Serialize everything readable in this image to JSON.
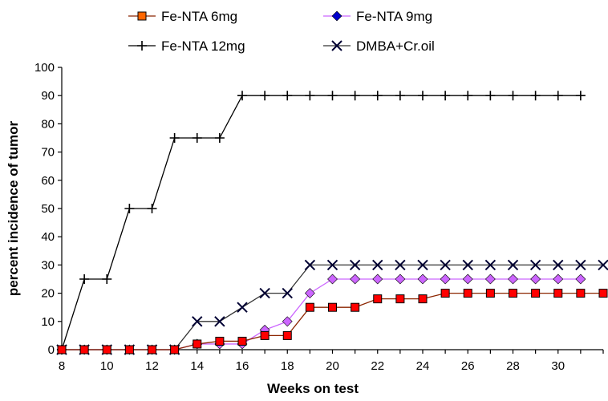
{
  "chart_data": {
    "type": "line",
    "title": "",
    "xlabel": "Weeks on test",
    "ylabel": "percent incidence of tumor",
    "xlim": [
      8,
      32
    ],
    "ylim": [
      0,
      100
    ],
    "x_ticks": [
      8,
      10,
      12,
      14,
      16,
      18,
      20,
      22,
      24,
      26,
      28,
      30
    ],
    "y_ticks": [
      0,
      10,
      20,
      30,
      40,
      50,
      60,
      70,
      80,
      90,
      100
    ],
    "grid": false,
    "legend_position": "top",
    "x": [
      8,
      9,
      10,
      11,
      12,
      13,
      14,
      15,
      16,
      17,
      18,
      19,
      20,
      21,
      22,
      23,
      24,
      25,
      26,
      27,
      28,
      29,
      30,
      31,
      32
    ],
    "series": [
      {
        "name": "Fe-NTA 6mg",
        "color": "#ff0000",
        "line_color": "#8b2500",
        "marker": "square",
        "marker_legend_color": "#ff6600",
        "values": [
          0,
          0,
          0,
          0,
          0,
          0,
          2,
          3,
          3,
          5,
          5,
          15,
          15,
          15,
          18,
          18,
          18,
          20,
          20,
          20,
          20,
          20,
          20,
          20,
          20
        ]
      },
      {
        "name": "Fe-NTA 9mg",
        "color": "#cc66ff",
        "line_color": "#cc66ff",
        "marker": "diamond",
        "marker_legend_color": "#0000cc",
        "values": [
          0,
          0,
          0,
          0,
          0,
          0,
          2,
          2,
          2,
          7,
          10,
          20,
          25,
          25,
          25,
          25,
          25,
          25,
          25,
          25,
          25,
          25,
          25,
          25,
          null
        ]
      },
      {
        "name": "Fe-NTA 12mg",
        "color": "#000000",
        "line_color": "#000000",
        "marker": "plus",
        "values": [
          0,
          25,
          25,
          50,
          50,
          75,
          75,
          75,
          90,
          90,
          90,
          90,
          90,
          90,
          90,
          90,
          90,
          90,
          90,
          90,
          90,
          90,
          90,
          90,
          null
        ]
      },
      {
        "name": "DMBA+Cr.oil",
        "color": "#000033",
        "line_color": "#333333",
        "marker": "x",
        "values": [
          0,
          0,
          0,
          0,
          0,
          0,
          10,
          10,
          15,
          20,
          20,
          30,
          30,
          30,
          30,
          30,
          30,
          30,
          30,
          30,
          30,
          30,
          30,
          30,
          30
        ]
      }
    ]
  }
}
